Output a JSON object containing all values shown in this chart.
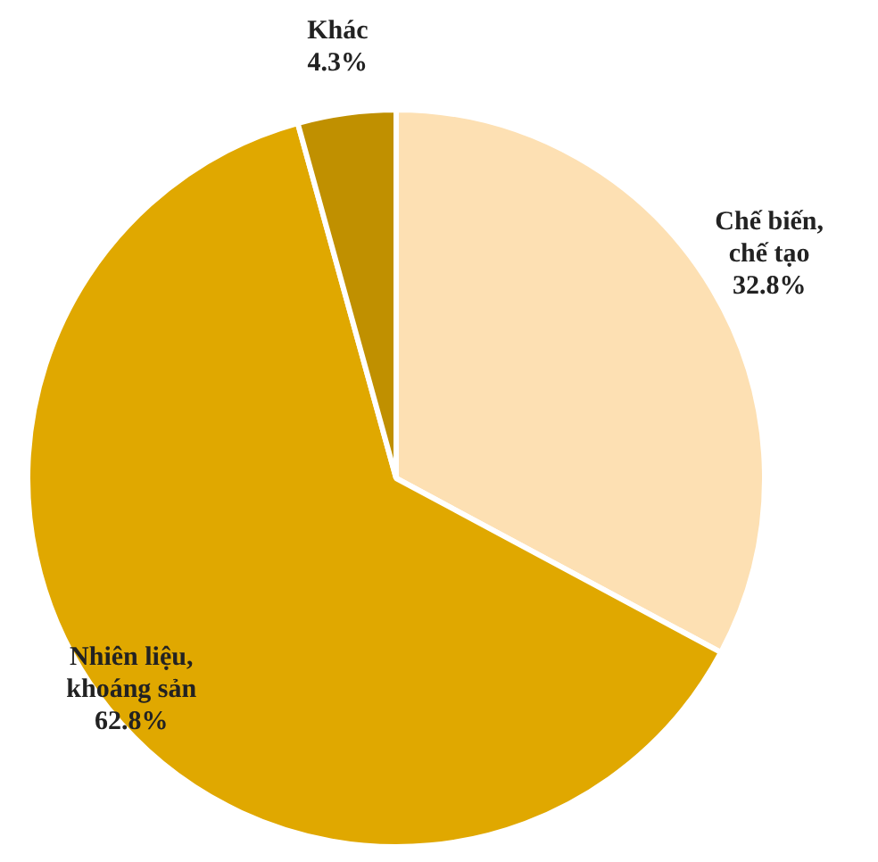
{
  "chart_data": {
    "type": "pie",
    "categories": [
      "Chế biến, chế tạo",
      "Nhiên liệu, khoáng sản",
      "Khác"
    ],
    "values": [
      32.8,
      62.8,
      4.3
    ],
    "colors": [
      "#fde0b3",
      "#e0a800",
      "#c09000"
    ],
    "value_labels": [
      "32.8%",
      "62.8%",
      "4.3%"
    ],
    "legend": false
  }
}
